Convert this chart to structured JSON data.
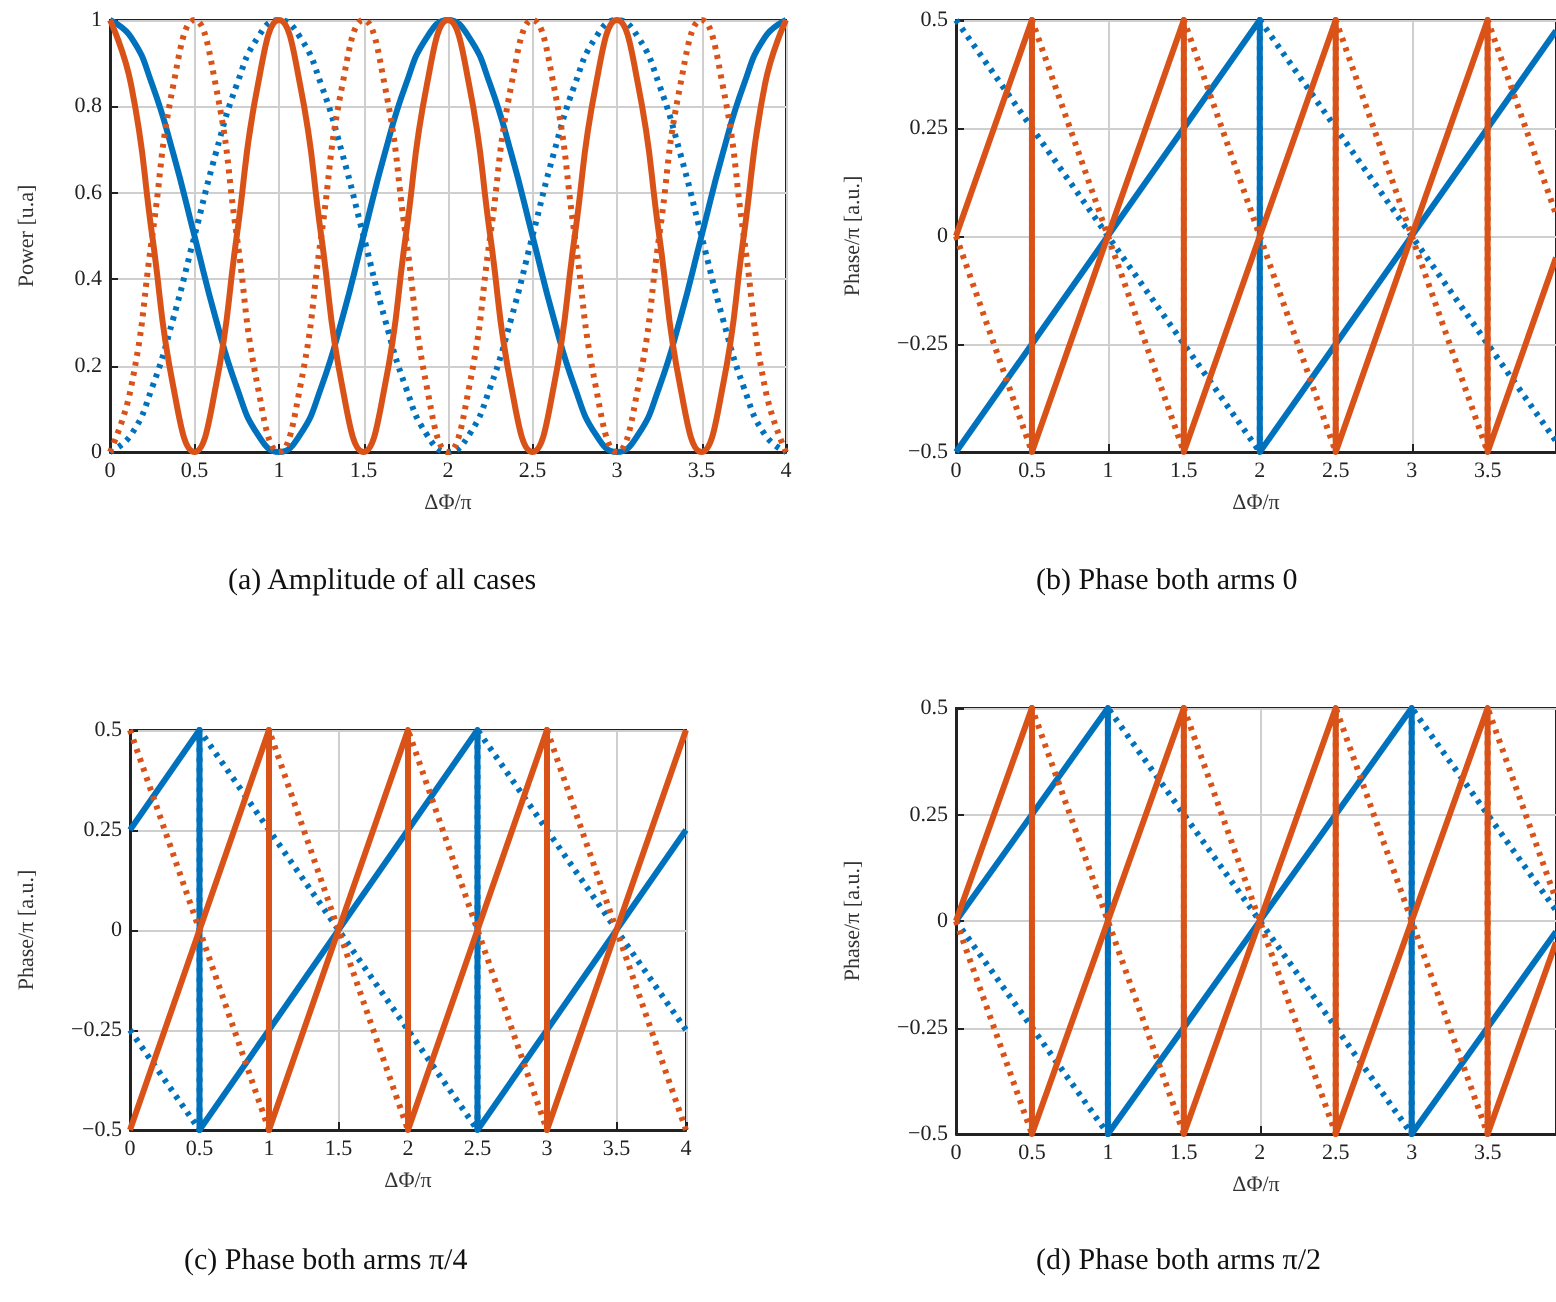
{
  "chart_data": [
    {
      "type": "line",
      "xlabel": "ΔΦ/π",
      "ylabel": "Power [u.a]",
      "annotations": [
        "(a) Amplitude of all cases"
      ],
      "xlim": [
        0,
        4
      ],
      "xticks": [
        0,
        0.5,
        1,
        1.5,
        2,
        2.5,
        3,
        3.5,
        4
      ],
      "ylim": [
        0,
        1
      ],
      "yticks": [
        0,
        0.2,
        0.4,
        0.6,
        0.8,
        1
      ],
      "grid": true,
      "marker": "none",
      "x": [
        0,
        0.125,
        0.25,
        0.375,
        0.5,
        0.625,
        0.75,
        0.875,
        1,
        1.125,
        1.25,
        1.375,
        1.5,
        1.625,
        1.75,
        1.875,
        2,
        2.125,
        2.25,
        2.375,
        2.5,
        2.625,
        2.75,
        2.875,
        3,
        3.125,
        3.25,
        3.375,
        3.5,
        3.625,
        3.75,
        3.875,
        4
      ],
      "series": [
        {
          "color": "#0072bd",
          "line_style": "solid",
          "values": [
            1,
            0.96,
            0.85,
            0.69,
            0.5,
            0.31,
            0.15,
            0.04,
            0,
            0.04,
            0.15,
            0.31,
            0.5,
            0.69,
            0.85,
            0.96,
            1,
            0.96,
            0.85,
            0.69,
            0.5,
            0.31,
            0.15,
            0.04,
            0,
            0.04,
            0.15,
            0.31,
            0.5,
            0.69,
            0.85,
            0.96,
            1
          ]
        },
        {
          "color": "#0072bd",
          "line_style": "dotted",
          "values": [
            0,
            0.04,
            0.15,
            0.31,
            0.5,
            0.69,
            0.85,
            0.96,
            1,
            0.96,
            0.85,
            0.69,
            0.5,
            0.31,
            0.15,
            0.04,
            0,
            0.04,
            0.15,
            0.31,
            0.5,
            0.69,
            0.85,
            0.96,
            1,
            0.96,
            0.85,
            0.69,
            0.5,
            0.31,
            0.15,
            0.04,
            0
          ]
        },
        {
          "color": "#d95319",
          "line_style": "solid",
          "values": [
            1,
            0.85,
            0.5,
            0.15,
            0,
            0.15,
            0.5,
            0.85,
            1,
            0.85,
            0.5,
            0.15,
            0,
            0.15,
            0.5,
            0.85,
            1,
            0.85,
            0.5,
            0.15,
            0,
            0.15,
            0.5,
            0.85,
            1,
            0.85,
            0.5,
            0.15,
            0,
            0.15,
            0.5,
            0.85,
            1
          ]
        },
        {
          "color": "#d95319",
          "line_style": "dotted",
          "values": [
            0,
            0.15,
            0.5,
            0.85,
            1,
            0.85,
            0.5,
            0.15,
            0,
            0.15,
            0.5,
            0.85,
            1,
            0.85,
            0.5,
            0.15,
            0,
            0.15,
            0.5,
            0.85,
            1,
            0.85,
            0.5,
            0.15,
            0,
            0.15,
            0.5,
            0.85,
            1,
            0.85,
            0.5,
            0.15,
            0
          ]
        }
      ]
    },
    {
      "type": "line",
      "xlabel": "ΔΦ/π",
      "ylabel": "Phase/π [a.u.]",
      "annotations": [
        "(b) Phase both arms 0"
      ],
      "xlim": [
        0,
        3.95
      ],
      "xticks": [
        0,
        0.5,
        1,
        1.5,
        2,
        2.5,
        3,
        3.5
      ],
      "ylim": [
        -0.5,
        0.5
      ],
      "yticks": [
        -0.5,
        -0.25,
        0,
        0.25,
        0.5
      ],
      "grid": true,
      "marker": "none",
      "series": [
        {
          "color": "#0072bd",
          "line_style": "solid",
          "x": [
            0,
            2,
            2,
            3.95
          ],
          "values": [
            -0.5,
            0.5,
            -0.5,
            0.475
          ]
        },
        {
          "color": "#0072bd",
          "line_style": "dotted",
          "x": [
            0,
            2,
            2,
            3.95
          ],
          "values": [
            0.5,
            -0.5,
            0.5,
            -0.475
          ]
        },
        {
          "color": "#d95319",
          "line_style": "solid",
          "x": [
            0,
            0.5,
            0.5,
            1.5,
            1.5,
            2.5,
            2.5,
            3.5,
            3.5,
            3.95
          ],
          "values": [
            0,
            0.5,
            -0.5,
            0.5,
            -0.5,
            0.5,
            -0.5,
            0.5,
            -0.5,
            -0.05
          ]
        },
        {
          "color": "#d95319",
          "line_style": "dotted",
          "x": [
            0,
            0.5,
            0.5,
            1.5,
            1.5,
            2.5,
            2.5,
            3.5,
            3.5,
            3.95
          ],
          "values": [
            0,
            -0.5,
            0.5,
            -0.5,
            0.5,
            -0.5,
            0.5,
            -0.5,
            0.5,
            0.05
          ]
        }
      ]
    },
    {
      "type": "line",
      "xlabel": "ΔΦ/π",
      "ylabel": "Phase/π [a.u.]",
      "annotations": [
        "(c) Phase both arms π/4"
      ],
      "xlim": [
        0,
        4
      ],
      "xticks": [
        0,
        0.5,
        1,
        1.5,
        2,
        2.5,
        3,
        3.5,
        4
      ],
      "ylim": [
        -0.5,
        0.5
      ],
      "yticks": [
        -0.5,
        -0.25,
        0,
        0.25,
        0.5
      ],
      "grid": true,
      "marker": "none",
      "series": [
        {
          "color": "#0072bd",
          "line_style": "solid",
          "x": [
            0,
            0.5,
            0.5,
            2.5,
            2.5,
            4
          ],
          "values": [
            0.25,
            0.5,
            -0.5,
            0.5,
            -0.5,
            0.25
          ]
        },
        {
          "color": "#0072bd",
          "line_style": "dotted",
          "x": [
            0,
            0.5,
            0.5,
            2.5,
            2.5,
            4
          ],
          "values": [
            -0.25,
            -0.5,
            0.5,
            -0.5,
            0.5,
            -0.25
          ]
        },
        {
          "color": "#d95319",
          "line_style": "solid",
          "x": [
            0,
            1,
            1,
            2,
            2,
            3,
            3,
            4
          ],
          "values": [
            -0.5,
            0.5,
            -0.5,
            0.5,
            -0.5,
            0.5,
            -0.5,
            0.5
          ]
        },
        {
          "color": "#d95319",
          "line_style": "dotted",
          "x": [
            0,
            1,
            1,
            2,
            2,
            3,
            3,
            4
          ],
          "values": [
            0.5,
            -0.5,
            0.5,
            -0.5,
            0.5,
            -0.5,
            0.5,
            -0.5
          ]
        }
      ]
    },
    {
      "type": "line",
      "xlabel": "ΔΦ/π",
      "ylabel": "Phase/π [a.u.]",
      "annotations": [
        "(d) Phase both arms π/2"
      ],
      "xlim": [
        0,
        3.95
      ],
      "xticks": [
        0,
        0.5,
        1,
        1.5,
        2,
        2.5,
        3,
        3.5
      ],
      "ylim": [
        -0.5,
        0.5
      ],
      "yticks": [
        -0.5,
        -0.25,
        0,
        0.25,
        0.5
      ],
      "grid": true,
      "marker": "none",
      "series": [
        {
          "color": "#0072bd",
          "line_style": "solid",
          "x": [
            0,
            1,
            1,
            3,
            3,
            3.95
          ],
          "values": [
            0,
            0.5,
            -0.5,
            0.5,
            -0.5,
            -0.025
          ]
        },
        {
          "color": "#0072bd",
          "line_style": "dotted",
          "x": [
            0,
            1,
            1,
            3,
            3,
            3.95
          ],
          "values": [
            0,
            -0.5,
            0.5,
            -0.5,
            0.5,
            0.025
          ]
        },
        {
          "color": "#d95319",
          "line_style": "solid",
          "x": [
            0,
            0.5,
            0.5,
            1.5,
            1.5,
            2.5,
            2.5,
            3.5,
            3.5,
            3.95
          ],
          "values": [
            0,
            0.5,
            -0.5,
            0.5,
            -0.5,
            0.5,
            -0.5,
            0.5,
            -0.5,
            -0.05
          ]
        },
        {
          "color": "#d95319",
          "line_style": "dotted",
          "x": [
            0,
            0.5,
            0.5,
            1.5,
            1.5,
            2.5,
            2.5,
            3.5,
            3.5,
            3.95
          ],
          "values": [
            0,
            -0.5,
            0.5,
            -0.5,
            0.5,
            -0.5,
            0.5,
            -0.5,
            0.5,
            0.05
          ]
        }
      ]
    }
  ]
}
